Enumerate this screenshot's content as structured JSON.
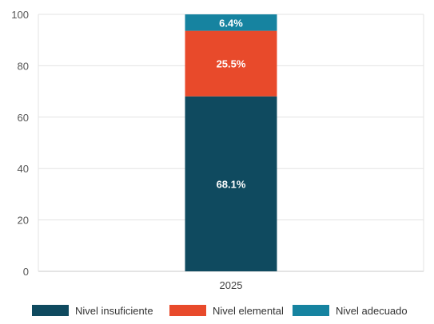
{
  "chart_data": {
    "type": "bar",
    "stacked": true,
    "title": "",
    "xlabel": "",
    "ylabel": "",
    "categories": [
      "2025"
    ],
    "ylim": [
      0,
      100
    ],
    "yticks": [
      0,
      20,
      40,
      60,
      80,
      100
    ],
    "grid": true,
    "legend_position": "bottom",
    "series": [
      {
        "name": "Nivel insuficiente",
        "values": [
          68.1
        ],
        "label": "68.1%",
        "color": "#0f4a5f"
      },
      {
        "name": "Nivel elemental",
        "values": [
          25.5
        ],
        "label": "25.5%",
        "color": "#e84a2b"
      },
      {
        "name": "Nivel adecuado",
        "values": [
          6.4
        ],
        "label": "6.4%",
        "color": "#1683a0"
      }
    ]
  }
}
